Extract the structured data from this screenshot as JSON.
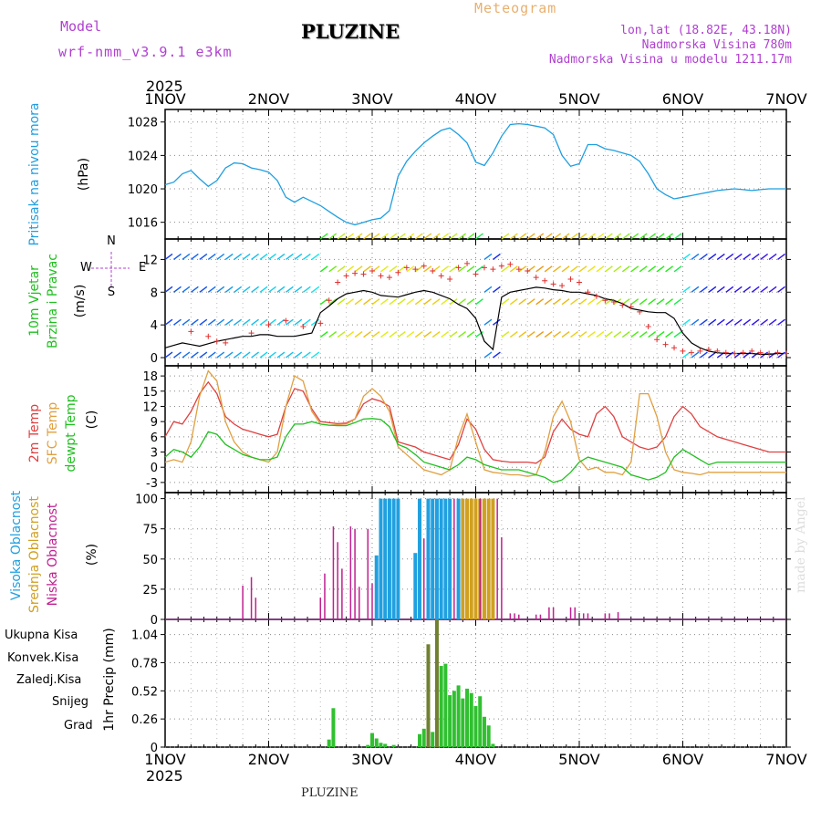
{
  "header": {
    "model_label": "Model",
    "model_run": "wrf-nmm_v3.9.1 e3km",
    "station": "PLUZINE",
    "title": "Meteogram",
    "lonlat": "lon,lat (18.82E, 43.18N)",
    "altitude": "Nadmorska Visina 780m",
    "altitude_model": "Nadmorska Visina u modelu 1211.17m"
  },
  "footer": {
    "station": "PLUZINE",
    "credit": "made by Angel"
  },
  "colors": {
    "pressure": "#1f9fe0",
    "temp": "#e04040",
    "sfc": "#e0a040",
    "dew": "#20c020",
    "cloud_high": "#20a0e0",
    "cloud_mid": "#d0a020",
    "cloud_low": "#c02090",
    "precip_total": "#30c030",
    "precip_conv": "#e04040",
    "precip_frozen": "#f08030",
    "snow": "#5050e0",
    "hail": "#30c0c0"
  },
  "chart_data": [
    {
      "id": "time_axis",
      "year": "2025",
      "days": [
        "1NOV",
        "2NOV",
        "3NOV",
        "4NOV",
        "5NOV",
        "6NOV",
        "7NOV"
      ],
      "bottom_days": [
        "1NOV",
        "2NOV",
        "3NOV",
        "4NOV",
        "5NOV",
        "6NOV",
        "7NOV"
      ],
      "bottom_year": "2025",
      "xlim": [
        0,
        144
      ]
    },
    {
      "id": "pressure",
      "type": "line",
      "ylabel_main": "Pritisak na nivou mora",
      "ylabel_unit": "(hPa)",
      "ylim": [
        1014,
        1029.5
      ],
      "yticks": [
        1016,
        1020,
        1024,
        1028
      ],
      "x": [
        0,
        2,
        4,
        6,
        8,
        10,
        12,
        14,
        16,
        18,
        20,
        22,
        24,
        26,
        28,
        30,
        32,
        34,
        36,
        38,
        40,
        42,
        44,
        46,
        48,
        50,
        52,
        54,
        56,
        58,
        60,
        62,
        64,
        66,
        68,
        70,
        72,
        74,
        76,
        78,
        80,
        82,
        84,
        86,
        88,
        90,
        92,
        94,
        96,
        98,
        100,
        102,
        104,
        106,
        108,
        110,
        112,
        114,
        116,
        118,
        120,
        122,
        124,
        126,
        128,
        130,
        132,
        134,
        136,
        138,
        140,
        142,
        144
      ],
      "values": [
        1020.5,
        1020.8,
        1021.8,
        1022.2,
        1021.2,
        1020.3,
        1021.0,
        1022.5,
        1023.1,
        1023.0,
        1022.5,
        1022.3,
        1022.0,
        1021.0,
        1019.0,
        1018.4,
        1019.0,
        1018.5,
        1018.0,
        1017.3,
        1016.6,
        1016.0,
        1015.7,
        1016.0,
        1016.3,
        1016.5,
        1017.4,
        1021.5,
        1023.3,
        1024.5,
        1025.5,
        1026.3,
        1027.0,
        1027.3,
        1026.5,
        1025.5,
        1023.2,
        1022.8,
        1024.3,
        1026.3,
        1027.7,
        1027.8,
        1027.7,
        1027.5,
        1027.3,
        1026.5,
        1024.0,
        1022.7,
        1023.0,
        1025.3,
        1025.3,
        1024.8,
        1024.6,
        1024.3,
        1024.0,
        1023.3,
        1021.8,
        1020.0,
        1019.3,
        1018.8,
        1019.0,
        1019.2,
        1019.4,
        1019.6,
        1019.8,
        1019.9,
        1020.0,
        1019.9,
        1019.8,
        1019.9,
        1020.0,
        1020.0,
        1020.0
      ]
    },
    {
      "id": "wind",
      "type": "line",
      "ylabel_main": "10m Vjetar",
      "ylabel_sub": "Brzina i Pravac",
      "ylabel_unit": "(m/s)",
      "compass": "N",
      "compass_w": "W",
      "compass_e": "E",
      "compass_s": "S",
      "ylim": [
        -1,
        14.5
      ],
      "yticks": [
        0,
        4,
        8,
        12
      ],
      "x": [
        0,
        2,
        4,
        6,
        8,
        10,
        12,
        14,
        16,
        18,
        20,
        22,
        24,
        26,
        28,
        30,
        32,
        34,
        36,
        38,
        40,
        42,
        44,
        46,
        48,
        50,
        52,
        54,
        56,
        58,
        60,
        62,
        64,
        66,
        68,
        70,
        72,
        74,
        76,
        78,
        80,
        82,
        84,
        86,
        88,
        90,
        92,
        94,
        96,
        98,
        100,
        102,
        104,
        106,
        108,
        110,
        112,
        114,
        116,
        118,
        120,
        122,
        124,
        126,
        128,
        130,
        132,
        134,
        136,
        138,
        140,
        142,
        144
      ],
      "speed": [
        1.2,
        1.5,
        1.8,
        1.6,
        1.4,
        1.7,
        2.0,
        2.2,
        2.4,
        2.6,
        2.6,
        2.8,
        2.8,
        2.6,
        2.6,
        2.6,
        2.8,
        3.0,
        5.5,
        6.3,
        7.2,
        7.8,
        8.0,
        8.2,
        8.0,
        7.6,
        7.5,
        7.4,
        7.7,
        8.0,
        8.2,
        8.0,
        7.6,
        7.2,
        6.5,
        6.0,
        4.8,
        2.0,
        1.0,
        7.4,
        8.0,
        8.2,
        8.4,
        8.6,
        8.5,
        8.3,
        8.2,
        8.0,
        8.0,
        7.8,
        7.6,
        7.2,
        7.0,
        6.6,
        6.0,
        5.8,
        5.6,
        5.5,
        5.5,
        4.8,
        3.0,
        1.8,
        1.2,
        0.8,
        0.6,
        0.5,
        0.5,
        0.5,
        0.5,
        0.4,
        0.4,
        0.5,
        0.5
      ],
      "gust_x": [
        6,
        10,
        12,
        14,
        20,
        24,
        28,
        32,
        36,
        38,
        40,
        42,
        44,
        46,
        48,
        50,
        52,
        54,
        56,
        58,
        60,
        62,
        64,
        66,
        68,
        70,
        72,
        74,
        76,
        78,
        80,
        82,
        84,
        86,
        88,
        90,
        92,
        94,
        96,
        98,
        100,
        102,
        104,
        106,
        108,
        110,
        112,
        114,
        116,
        118,
        120,
        122,
        124,
        126,
        128,
        130,
        132,
        134,
        136,
        138,
        140,
        142,
        144
      ],
      "gust": [
        3.2,
        2.6,
        2.0,
        1.8,
        3.0,
        4.0,
        4.5,
        3.8,
        4.2,
        7.0,
        9.2,
        10.0,
        10.3,
        10.2,
        10.6,
        10.0,
        9.8,
        10.4,
        11.0,
        10.8,
        11.2,
        10.6,
        10.0,
        9.6,
        11.0,
        11.5,
        10.2,
        11.0,
        10.8,
        11.2,
        11.4,
        10.8,
        10.6,
        9.8,
        9.4,
        9.0,
        8.8,
        9.6,
        9.2,
        8.0,
        7.5,
        7.0,
        6.8,
        6.4,
        6.2,
        5.6,
        3.8,
        2.2,
        1.6,
        1.2,
        0.8,
        0.6,
        0.8,
        1.0,
        0.8,
        0.6,
        0.5,
        0.6,
        0.8,
        0.6,
        0.5,
        0.6,
        0.5
      ]
    },
    {
      "id": "temperature",
      "type": "line",
      "ylabel_temp": "2m Temp",
      "ylabel_sfc": "SFC Temp",
      "ylabel_dew": "dewpt Temp",
      "ylabel_unit": "(C)",
      "ylim": [
        -5,
        20
      ],
      "yticks": [
        -3,
        0,
        3,
        6,
        9,
        12,
        15,
        18
      ],
      "x": [
        0,
        2,
        4,
        6,
        8,
        10,
        12,
        14,
        16,
        18,
        20,
        22,
        24,
        26,
        28,
        30,
        32,
        34,
        36,
        38,
        40,
        42,
        44,
        46,
        48,
        50,
        52,
        54,
        56,
        58,
        60,
        62,
        64,
        66,
        68,
        70,
        72,
        74,
        76,
        78,
        80,
        82,
        84,
        86,
        88,
        90,
        92,
        94,
        96,
        98,
        100,
        102,
        104,
        106,
        108,
        110,
        112,
        114,
        116,
        118,
        120,
        122,
        124,
        126,
        128,
        130,
        132,
        134,
        136,
        138,
        140,
        142,
        144
      ],
      "series": [
        {
          "name": "2m Temp",
          "values": [
            6.0,
            9.0,
            8.5,
            11.0,
            14.5,
            16.8,
            14.5,
            10.0,
            8.5,
            7.5,
            7.0,
            6.5,
            6.0,
            6.5,
            12.0,
            15.5,
            15.0,
            11.5,
            9.0,
            8.8,
            8.6,
            8.7,
            9.5,
            12.5,
            13.5,
            13.0,
            12.0,
            5.0,
            4.5,
            4.0,
            3.0,
            2.5,
            2.0,
            1.5,
            4.5,
            9.5,
            7.5,
            3.5,
            1.5,
            1.2,
            1.0,
            1.0,
            1.0,
            0.8,
            2.0,
            7.0,
            9.5,
            7.5,
            6.5,
            6.0,
            10.5,
            12.0,
            10.0,
            6.0,
            5.0,
            4.0,
            3.5,
            4.0,
            6.0,
            10.0,
            12.0,
            10.5,
            8.0,
            7.0,
            6.0,
            5.5,
            5.0,
            4.5,
            4.0,
            3.5,
            3.0,
            3.0,
            3.0
          ]
        },
        {
          "name": "SFC Temp",
          "values": [
            1.0,
            1.5,
            1.0,
            5.0,
            14.0,
            19.0,
            17.0,
            9.0,
            5.0,
            3.0,
            2.0,
            1.5,
            1.0,
            3.0,
            12.0,
            18.0,
            17.0,
            11.0,
            8.5,
            8.3,
            8.4,
            8.5,
            9.5,
            14.0,
            15.5,
            14.0,
            11.0,
            4.0,
            2.5,
            1.0,
            -0.5,
            -1.0,
            -1.5,
            -0.5,
            6.0,
            10.5,
            5.0,
            -0.5,
            -1.0,
            -1.2,
            -1.5,
            -1.5,
            -1.8,
            -1.5,
            3.0,
            10.0,
            13.0,
            9.0,
            1.5,
            -0.5,
            0.0,
            -1.0,
            -1.0,
            -1.5,
            1.0,
            14.5,
            14.5,
            10.0,
            3.0,
            -0.5,
            -1.0,
            -1.2,
            -1.5,
            -1.0,
            -1.0,
            -1.0,
            -1.0,
            -1.0,
            -1.0,
            -1.0,
            -1.0,
            -1.0,
            -1.0
          ]
        },
        {
          "name": "dewpt Temp",
          "values": [
            2.0,
            3.5,
            3.0,
            2.0,
            4.0,
            7.0,
            6.5,
            4.5,
            3.5,
            2.5,
            2.0,
            1.5,
            1.5,
            2.0,
            6.0,
            8.5,
            8.5,
            9.0,
            8.5,
            8.3,
            8.2,
            8.2,
            8.8,
            9.5,
            9.6,
            9.4,
            8.0,
            4.5,
            3.8,
            2.5,
            1.0,
            0.5,
            0.0,
            -0.5,
            0.5,
            2.0,
            1.5,
            0.5,
            0.0,
            -0.5,
            -0.5,
            -0.5,
            -1.0,
            -1.5,
            -2.0,
            -3.0,
            -2.5,
            -1.0,
            1.0,
            2.0,
            1.5,
            1.0,
            0.5,
            0.0,
            -1.5,
            -2.0,
            -2.5,
            -2.0,
            -1.0,
            2.0,
            3.5,
            2.5,
            1.5,
            0.5,
            1.0,
            1.0,
            1.0,
            1.0,
            1.0,
            1.0,
            1.0,
            1.0,
            1.0
          ]
        }
      ]
    },
    {
      "id": "cloud",
      "type": "bar",
      "ylabel_high": "Visoka Oblacnost",
      "ylabel_mid": "Srednja Oblacnost",
      "ylabel_low": "Niska Oblacnost",
      "ylabel_unit": "(%)",
      "ylim": [
        0,
        105
      ],
      "yticks": [
        0,
        25,
        50,
        75,
        100
      ],
      "series": [
        {
          "name": "high",
          "x": [
            49,
            50,
            51,
            52,
            53,
            54,
            58,
            59,
            61,
            62,
            63,
            64,
            65,
            66,
            68
          ],
          "values": [
            53,
            100,
            100,
            100,
            100,
            100,
            55,
            100,
            100,
            100,
            100,
            100,
            100,
            100,
            100
          ]
        },
        {
          "name": "mid",
          "x": [
            69,
            70,
            71,
            72,
            73,
            74,
            75,
            76
          ],
          "values": [
            100,
            100,
            100,
            100,
            100,
            100,
            100,
            100
          ]
        },
        {
          "name": "low",
          "x": [
            18,
            20,
            21,
            36,
            37,
            39,
            40,
            41,
            43,
            44,
            45,
            47,
            48,
            60,
            67,
            73,
            77,
            78,
            80,
            81,
            82,
            86,
            87,
            89,
            90,
            94,
            95,
            97,
            98,
            102,
            103,
            105
          ],
          "values": [
            28,
            35,
            18,
            18,
            38,
            77,
            64,
            42,
            77,
            75,
            27,
            75,
            30,
            67,
            100,
            100,
            100,
            68,
            5,
            5,
            4,
            4,
            4,
            10,
            10,
            10,
            10,
            5,
            5,
            5,
            5,
            6
          ]
        }
      ]
    },
    {
      "id": "precip",
      "type": "bar",
      "ylabel_total": "Ukupna Kisa",
      "ylabel_conv": "Konvek.Kisa",
      "ylabel_frozen": "Zaledj.Kisa",
      "ylabel_snow": "Snijeg",
      "ylabel_hail": "Grad",
      "ylabel_unit": "1hr Precip (mm)",
      "ylim": [
        0,
        1.18
      ],
      "yticks": [
        0,
        0.26,
        0.52,
        0.78,
        1.04
      ],
      "ytick_labels": [
        "0",
        "0.26",
        "0.52",
        "0.78",
        "1.04"
      ],
      "x": [
        38,
        39,
        47,
        48,
        49,
        50,
        51,
        53,
        59,
        60,
        61,
        62,
        63,
        64,
        65,
        66,
        67,
        68,
        69,
        70,
        71,
        72,
        73,
        74,
        75,
        76
      ],
      "values": [
        0.07,
        0.36,
        0.02,
        0.13,
        0.08,
        0.04,
        0.03,
        0.02,
        0.12,
        0.17,
        0.95,
        0.14,
        1.18,
        0.75,
        0.77,
        0.48,
        0.52,
        0.57,
        0.45,
        0.54,
        0.5,
        0.38,
        0.47,
        0.28,
        0.2,
        0.03
      ],
      "colors": [
        "total",
        "total",
        "total",
        "total",
        "total",
        "total",
        "total",
        "total",
        "total",
        "total",
        "dark",
        "total",
        "dark",
        "total",
        "total",
        "total",
        "total",
        "total",
        "total",
        "total",
        "total",
        "total",
        "total",
        "total",
        "total",
        "total"
      ]
    }
  ]
}
